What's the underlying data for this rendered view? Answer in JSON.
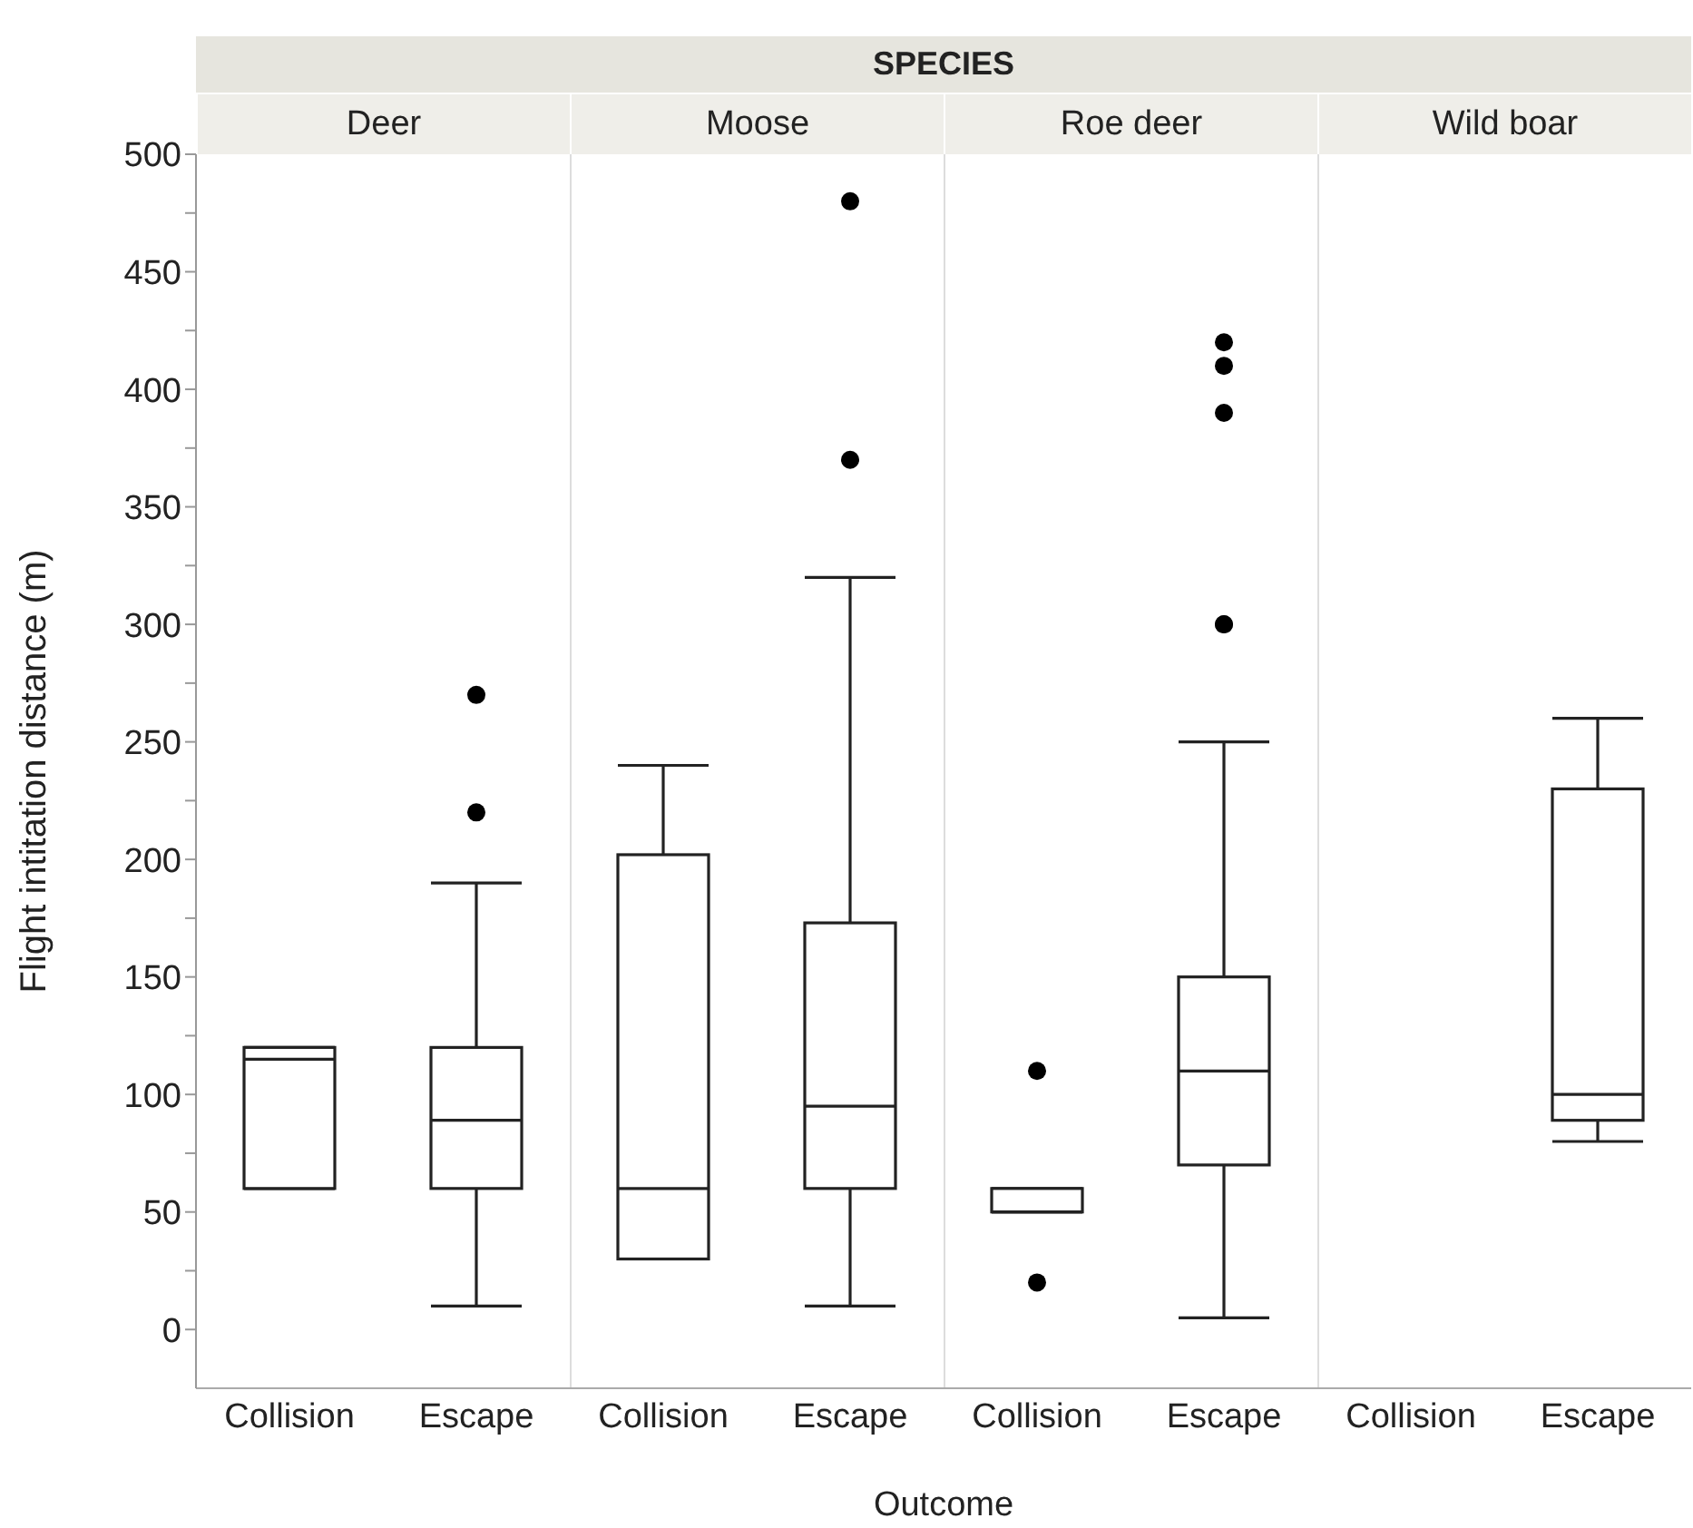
{
  "chart_data": {
    "type": "box",
    "title": "SPECIES",
    "xlabel": "Outcome",
    "ylabel": "Flight intitation distance (m)",
    "annotations": [
      "Deer",
      "Moose",
      "Roe deer",
      "Wild boar"
    ],
    "categories": [
      "Collision",
      "Escape",
      "Collision",
      "Escape",
      "Collision",
      "Escape",
      "Collision",
      "Escape"
    ],
    "ylim": [
      -25,
      500
    ],
    "yticks": [
      0,
      {
        "value": 25,
        "label": null
      },
      50,
      {
        "value": 75,
        "label": null
      },
      100,
      {
        "value": 125,
        "label": null
      },
      150,
      {
        "value": 175,
        "label": null
      },
      200,
      {
        "value": 225,
        "label": null
      },
      250,
      {
        "value": 275,
        "label": null
      },
      300,
      {
        "value": 325,
        "label": null
      },
      350,
      {
        "value": 375,
        "label": null
      },
      400,
      {
        "value": 425,
        "label": null
      },
      450,
      {
        "value": 475,
        "label": null
      },
      500
    ],
    "boxes": [
      {
        "low": 60,
        "q1": 60,
        "median": 115,
        "q3": 120,
        "high": 120
      },
      {
        "low": 10,
        "q1": 60,
        "median": 89,
        "q3": 120,
        "high": 190,
        "outliers": [
          220,
          270
        ]
      },
      {
        "low": 30,
        "q1": 30,
        "median": 60,
        "q3": 202,
        "high": 240
      },
      {
        "low": 10,
        "q1": 60,
        "median": 95,
        "q3": 173,
        "high": 320,
        "outliers": [
          370,
          480
        ]
      },
      {
        "low": 50,
        "q1": 50,
        "median": 50,
        "q3": 60,
        "high": 60,
        "outliers": [
          20,
          110
        ]
      },
      {
        "low": 5,
        "q1": 70,
        "median": 110,
        "q3": 150,
        "high": 250,
        "outliers": [
          300,
          300,
          390,
          410,
          420
        ]
      },
      null,
      {
        "low": 80,
        "q1": 89,
        "median": 100,
        "q3": 230,
        "high": 260
      }
    ]
  }
}
